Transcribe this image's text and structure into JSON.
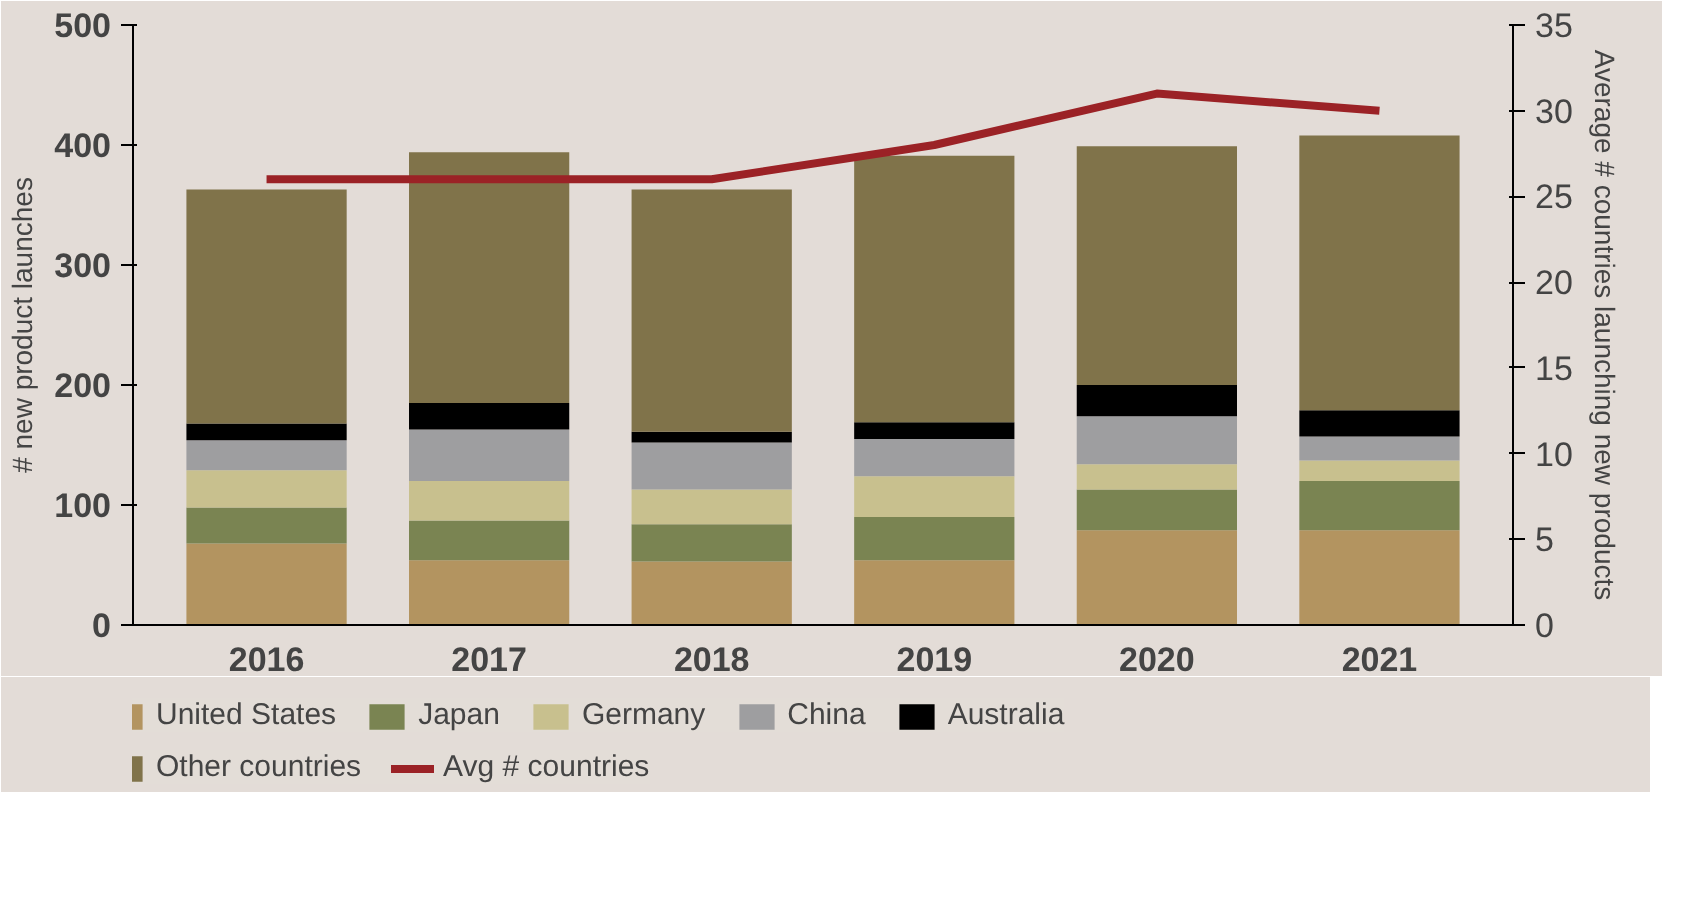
{
  "chart_data": {
    "type": "bar",
    "stacked": true,
    "categories": [
      "2016",
      "2017",
      "2018",
      "2019",
      "2020",
      "2021"
    ],
    "ylabel": "# new product launches",
    "y2label": "Average # countries launching new products",
    "ylim": [
      0,
      500
    ],
    "yticks": [
      0,
      100,
      200,
      300,
      400,
      500
    ],
    "y2lim": [
      0,
      35
    ],
    "y2ticks": [
      0,
      5,
      10,
      15,
      20,
      25,
      30,
      35
    ],
    "grid": false,
    "legend": "bottom",
    "series": [
      {
        "name": "United States",
        "color": "#b39460",
        "values": [
          68,
          54,
          53,
          54,
          79,
          79
        ]
      },
      {
        "name": "Japan",
        "color": "#7a8452",
        "values": [
          30,
          33,
          31,
          36,
          34,
          41
        ]
      },
      {
        "name": "Germany",
        "color": "#c8c08e",
        "values": [
          31,
          33,
          29,
          34,
          21,
          17
        ]
      },
      {
        "name": "China",
        "color": "#9e9ea0",
        "values": [
          25,
          43,
          39,
          31,
          40,
          20
        ]
      },
      {
        "name": "Australia",
        "color": "#000000",
        "values": [
          14,
          22,
          9,
          14,
          26,
          22
        ]
      },
      {
        "name": "Other countries",
        "color": "#80734a",
        "values": [
          195,
          209,
          202,
          222,
          199,
          229
        ]
      },
      {
        "name": "Avg # countries",
        "color": "#9b2226",
        "type": "line",
        "axis": "y2",
        "values": [
          26,
          26,
          26,
          28,
          31,
          30
        ]
      }
    ]
  }
}
